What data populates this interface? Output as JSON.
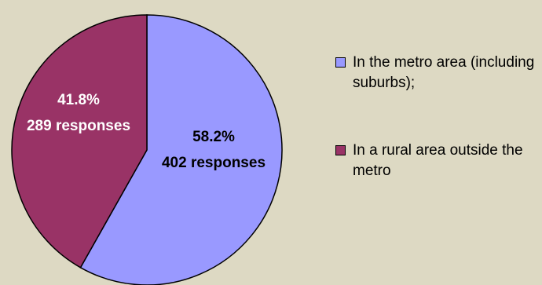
{
  "chart_data": {
    "type": "pie",
    "slices": [
      {
        "label": "In the metro area (including suburbs);",
        "percent_text": "58.2%",
        "responses_text": "402 responses",
        "value": 402,
        "color": "#9999ff"
      },
      {
        "label": "In a rural area outside the metro",
        "percent_text": "41.8%",
        "responses_text": "289 responses",
        "value": 289,
        "color": "#993366"
      }
    ],
    "legend_position": "right",
    "background": "#ddd9c3"
  }
}
